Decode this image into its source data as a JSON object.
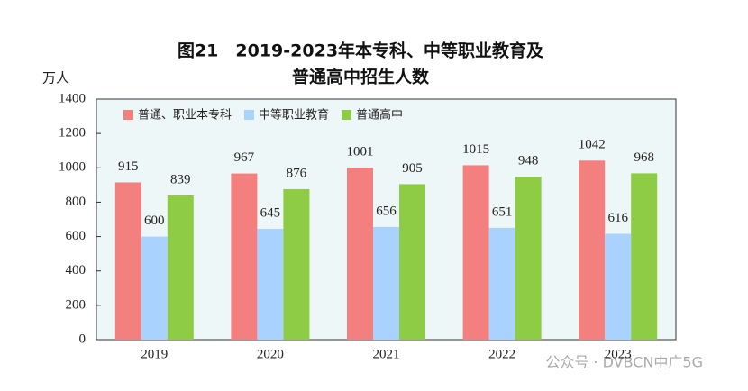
{
  "chart_data": {
    "type": "bar",
    "title_lines": [
      "图21　2019-2023年本专科、中等职业教育及",
      "普通高中招生人数"
    ],
    "y_unit": "万人",
    "categories": [
      "2019",
      "2020",
      "2021",
      "2022",
      "2023"
    ],
    "series": [
      {
        "name": "普通、职业本专科",
        "color": "#f47f7f",
        "values": [
          915,
          967,
          1001,
          1015,
          1042
        ]
      },
      {
        "name": "中等职业教育",
        "color": "#a9d2ff",
        "values": [
          600,
          645,
          656,
          651,
          616
        ]
      },
      {
        "name": "普通高中",
        "color": "#8dcc44",
        "values": [
          839,
          876,
          905,
          948,
          968
        ]
      }
    ],
    "ylim": [
      0,
      1400
    ],
    "yticks": [
      0,
      200,
      400,
      600,
      800,
      1000,
      1200,
      1400
    ],
    "grid": false,
    "legend": "top-left",
    "watermark": "公众号 · DVBCN中广5G"
  }
}
